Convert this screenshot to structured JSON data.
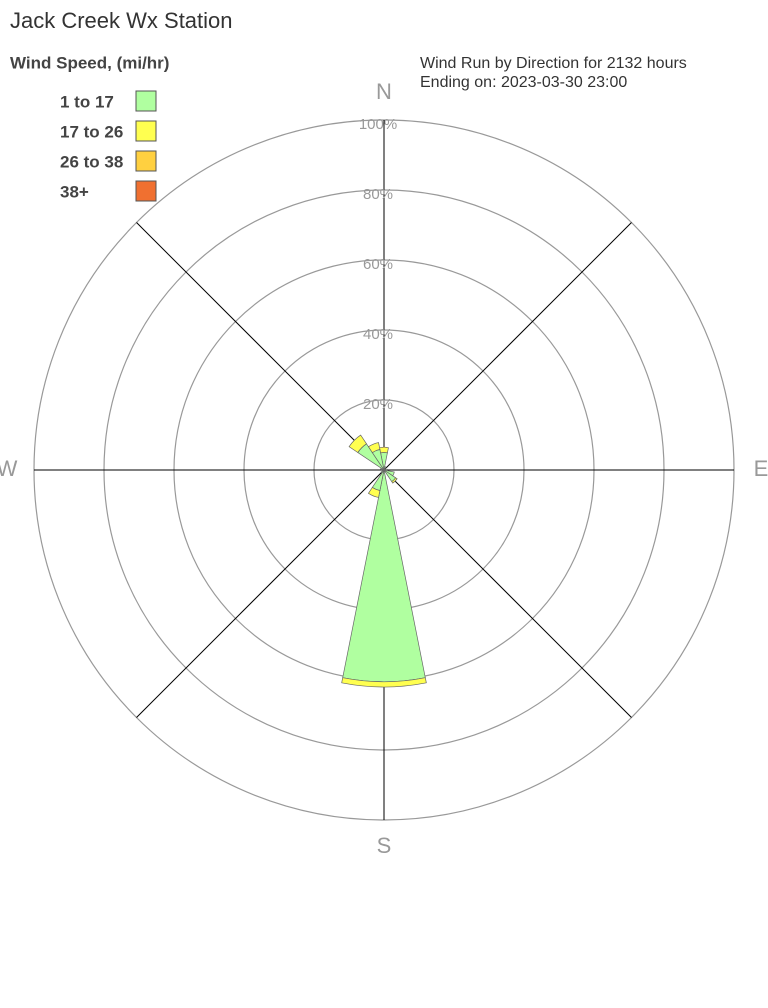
{
  "chart_data": {
    "type": "windrose",
    "title": "Jack Creek Wx Station",
    "legend_title": "Wind Speed, (mi/hr)",
    "subtitle": [
      "Wind Run by Direction for 2132 hours",
      "Ending on: 2023-03-30 23:00"
    ],
    "categories": [
      "N",
      null,
      null,
      null,
      "E",
      null,
      null,
      null,
      "S",
      null,
      null,
      null,
      "W",
      null,
      null,
      null
    ],
    "series": [
      {
        "name": "1 to 17",
        "color": "#b0ffa0",
        "values": [
          5,
          1,
          0.5,
          0.5,
          1,
          3,
          4,
          0.5,
          60.5,
          6,
          1,
          0.5,
          0.5,
          1,
          9,
          6
        ]
      },
      {
        "name": "17 to 26",
        "color": "#ffff50",
        "values": [
          1.5,
          0,
          0,
          0,
          0,
          0,
          0.5,
          0,
          1.5,
          2,
          0,
          0,
          0,
          0,
          3,
          2
        ]
      },
      {
        "name": "26 to 38",
        "color": "#ffd040",
        "values": [
          0,
          0,
          0,
          0,
          0,
          0,
          0,
          0,
          0,
          0,
          0,
          0,
          0,
          0,
          0,
          0
        ]
      },
      {
        "name": "38+",
        "color": "#f07030",
        "values": [
          0,
          0,
          0,
          0,
          0,
          0,
          0,
          0,
          0,
          0,
          0,
          0,
          0,
          0,
          0,
          0
        ]
      }
    ],
    "rlim": [
      0,
      100
    ],
    "rticks": [
      {
        "value": 20,
        "label": "20%"
      },
      {
        "value": 40,
        "label": "40%"
      },
      {
        "value": 60,
        "label": "60%"
      },
      {
        "value": 80,
        "label": "80%"
      },
      {
        "value": 100,
        "label": "100%"
      }
    ],
    "grid": true
  }
}
